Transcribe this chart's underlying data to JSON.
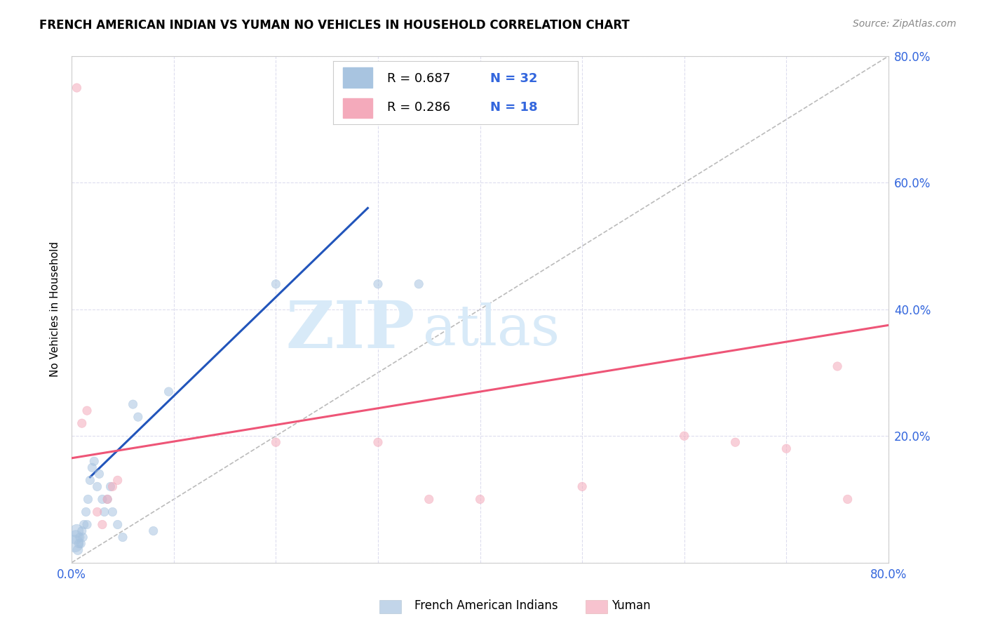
{
  "title": "FRENCH AMERICAN INDIAN VS YUMAN NO VEHICLES IN HOUSEHOLD CORRELATION CHART",
  "source": "Source: ZipAtlas.com",
  "ylabel": "No Vehicles in Household",
  "xlim": [
    0.0,
    0.8
  ],
  "ylim": [
    0.0,
    0.8
  ],
  "xticks": [
    0.0,
    0.1,
    0.2,
    0.3,
    0.4,
    0.5,
    0.6,
    0.7,
    0.8
  ],
  "yticks": [
    0.0,
    0.2,
    0.4,
    0.6,
    0.8
  ],
  "xtick_labels": [
    "0.0%",
    "",
    "",
    "",
    "",
    "",
    "",
    "",
    "80.0%"
  ],
  "ytick_labels_right": [
    "",
    "20.0%",
    "40.0%",
    "60.0%",
    "80.0%"
  ],
  "watermark_zip": "ZIP",
  "watermark_atlas": "atlas",
  "legend_blue_r": "R = 0.687",
  "legend_blue_n": "N = 32",
  "legend_pink_r": "R = 0.286",
  "legend_pink_n": "N = 18",
  "legend_label_blue": "French American Indians",
  "legend_label_pink": "Yuman",
  "blue_color": "#A8C4E0",
  "pink_color": "#F4AABB",
  "blue_line_color": "#2255BB",
  "pink_line_color": "#EE5577",
  "diag_color": "#BBBBBB",
  "text_blue": "#3366DD",
  "blue_scatter_x": [
    0.003,
    0.004,
    0.005,
    0.006,
    0.007,
    0.008,
    0.009,
    0.01,
    0.011,
    0.012,
    0.014,
    0.015,
    0.016,
    0.018,
    0.02,
    0.022,
    0.025,
    0.027,
    0.03,
    0.032,
    0.035,
    0.038,
    0.04,
    0.045,
    0.05,
    0.06,
    0.065,
    0.08,
    0.095,
    0.2,
    0.3,
    0.34
  ],
  "blue_scatter_y": [
    0.03,
    0.04,
    0.05,
    0.02,
    0.03,
    0.04,
    0.03,
    0.05,
    0.04,
    0.06,
    0.08,
    0.06,
    0.1,
    0.13,
    0.15,
    0.16,
    0.12,
    0.14,
    0.1,
    0.08,
    0.1,
    0.12,
    0.08,
    0.06,
    0.04,
    0.25,
    0.23,
    0.05,
    0.27,
    0.44,
    0.44,
    0.44
  ],
  "blue_scatter_size_vary": [
    300,
    200,
    180,
    100,
    80,
    80,
    80,
    80,
    80,
    80,
    80,
    80,
    80,
    80,
    80,
    80,
    80,
    80,
    80,
    80,
    80,
    80,
    80,
    80,
    80,
    80,
    80,
    80,
    80,
    80,
    80,
    80
  ],
  "pink_scatter_x": [
    0.005,
    0.01,
    0.015,
    0.025,
    0.03,
    0.035,
    0.04,
    0.045,
    0.2,
    0.3,
    0.35,
    0.4,
    0.5,
    0.6,
    0.65,
    0.7,
    0.75,
    0.76
  ],
  "pink_scatter_y": [
    0.75,
    0.22,
    0.24,
    0.08,
    0.06,
    0.1,
    0.12,
    0.13,
    0.19,
    0.19,
    0.1,
    0.1,
    0.12,
    0.2,
    0.19,
    0.18,
    0.31,
    0.1
  ],
  "blue_line_x": [
    0.018,
    0.29
  ],
  "blue_line_y": [
    0.135,
    0.56
  ],
  "pink_line_x": [
    0.0,
    0.8
  ],
  "pink_line_y": [
    0.165,
    0.375
  ],
  "diag_line_x": [
    0.0,
    0.8
  ],
  "diag_line_y": [
    0.0,
    0.8
  ]
}
